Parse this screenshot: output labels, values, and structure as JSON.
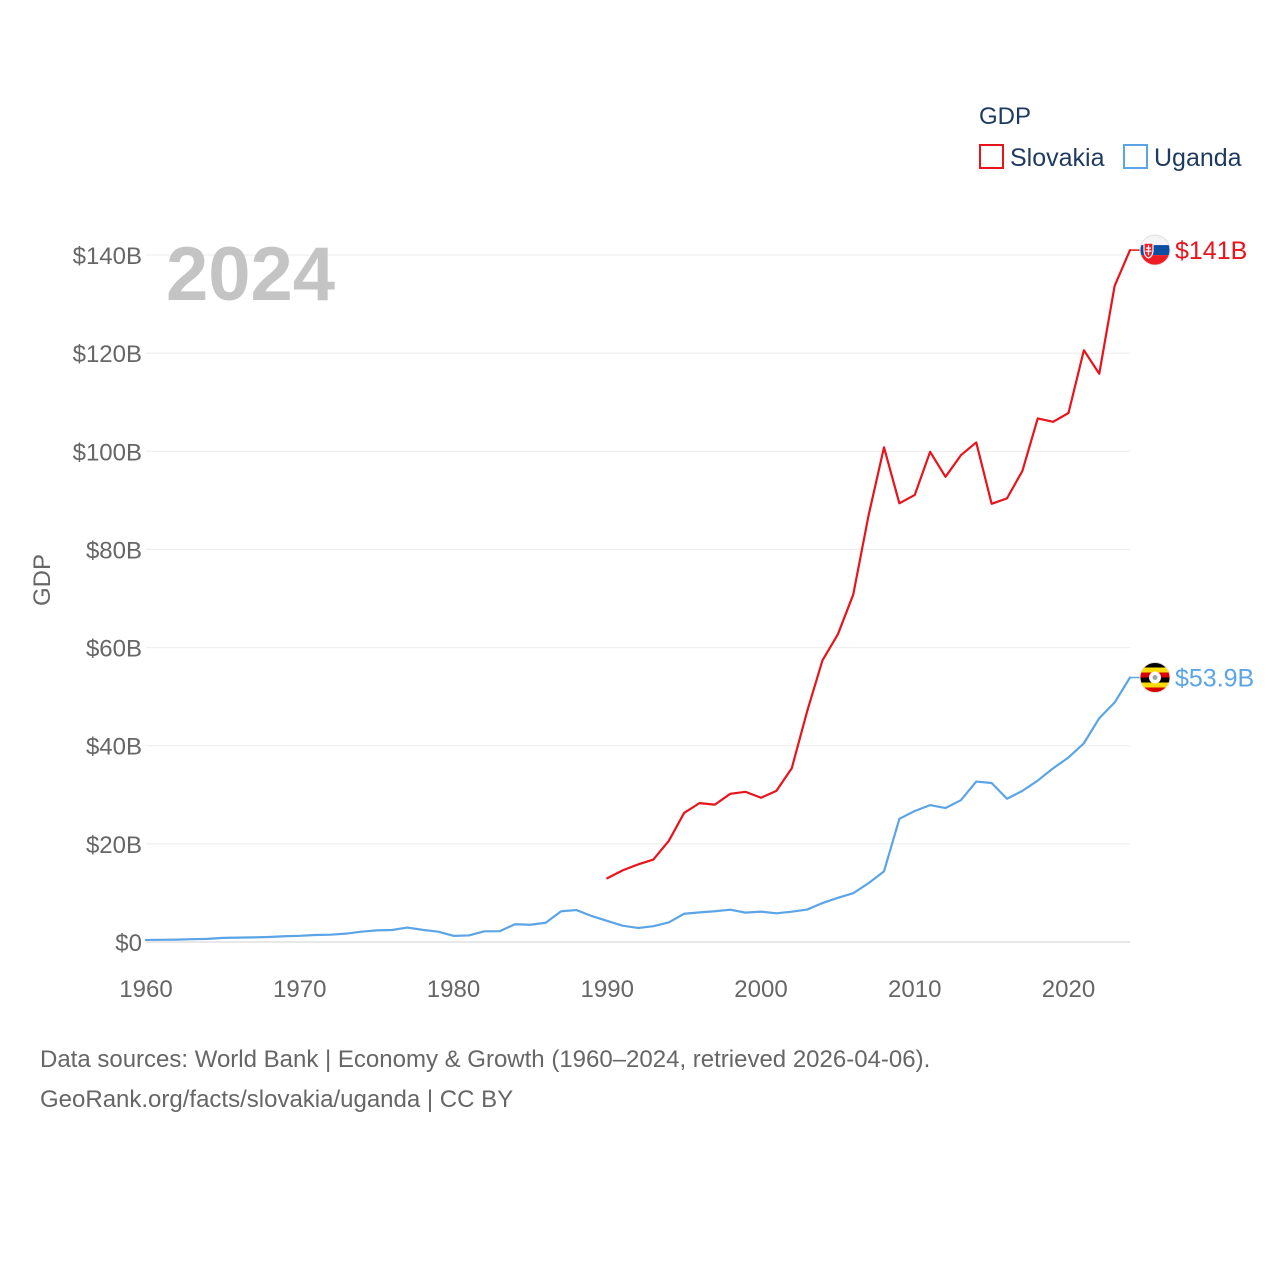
{
  "chart_data": {
    "type": "line",
    "title": "GDP",
    "ylabel": "GDP",
    "xlabel": "",
    "xlim": [
      1960,
      2024
    ],
    "ylim": [
      0,
      140
    ],
    "x_ticks": [
      1960,
      1970,
      1980,
      1990,
      2000,
      2010,
      2020
    ],
    "x_tick_labels": [
      "1960",
      "1970",
      "1980",
      "1990",
      "2000",
      "2010",
      "2020"
    ],
    "y_ticks": [
      0,
      20,
      40,
      60,
      80,
      100,
      120,
      140
    ],
    "y_tick_labels": [
      "$0",
      "$20B",
      "$40B",
      "$60B",
      "$80B",
      "$100B",
      "$120B",
      "$140B"
    ],
    "current_year": "2024",
    "unit": "billion USD",
    "legend": {
      "title": "GDP",
      "position": "top-right"
    },
    "series": [
      {
        "name": "Slovakia",
        "color": "#e8141c",
        "end_label": "$141B",
        "flag": "slovakia-flag",
        "points": [
          [
            1990,
            13.0
          ],
          [
            1991,
            14.6
          ],
          [
            1992,
            15.8
          ],
          [
            1993,
            16.8
          ],
          [
            1994,
            20.6
          ],
          [
            1995,
            26.3
          ],
          [
            1996,
            28.3
          ],
          [
            1997,
            28.0
          ],
          [
            1998,
            30.2
          ],
          [
            1999,
            30.6
          ],
          [
            2000,
            29.4
          ],
          [
            2001,
            30.8
          ],
          [
            2002,
            35.4
          ],
          [
            2003,
            47.0
          ],
          [
            2004,
            57.4
          ],
          [
            2005,
            62.7
          ],
          [
            2006,
            70.8
          ],
          [
            2007,
            87.0
          ],
          [
            2008,
            100.8
          ],
          [
            2009,
            89.4
          ],
          [
            2010,
            91.1
          ],
          [
            2011,
            99.9
          ],
          [
            2012,
            94.8
          ],
          [
            2013,
            99.2
          ],
          [
            2014,
            101.8
          ],
          [
            2015,
            89.3
          ],
          [
            2016,
            90.4
          ],
          [
            2017,
            96.0
          ],
          [
            2018,
            106.7
          ],
          [
            2019,
            106.0
          ],
          [
            2020,
            107.8
          ],
          [
            2021,
            120.6
          ],
          [
            2022,
            115.8
          ],
          [
            2023,
            133.7
          ],
          [
            2024,
            141.0
          ]
        ]
      },
      {
        "name": "Uganda",
        "color": "#5ba4e6",
        "end_label": "$53.9B",
        "flag": "uganda-flag",
        "points": [
          [
            1960,
            0.42
          ],
          [
            1961,
            0.45
          ],
          [
            1962,
            0.48
          ],
          [
            1963,
            0.57
          ],
          [
            1964,
            0.63
          ],
          [
            1965,
            0.84
          ],
          [
            1966,
            0.89
          ],
          [
            1967,
            0.94
          ],
          [
            1968,
            1.02
          ],
          [
            1969,
            1.17
          ],
          [
            1970,
            1.26
          ],
          [
            1971,
            1.42
          ],
          [
            1972,
            1.49
          ],
          [
            1973,
            1.7
          ],
          [
            1974,
            2.1
          ],
          [
            1975,
            2.37
          ],
          [
            1976,
            2.45
          ],
          [
            1977,
            2.94
          ],
          [
            1978,
            2.47
          ],
          [
            1979,
            2.1
          ],
          [
            1980,
            1.25
          ],
          [
            1981,
            1.34
          ],
          [
            1982,
            2.18
          ],
          [
            1983,
            2.2
          ],
          [
            1984,
            3.62
          ],
          [
            1985,
            3.52
          ],
          [
            1986,
            3.92
          ],
          [
            1987,
            6.27
          ],
          [
            1988,
            6.51
          ],
          [
            1989,
            5.28
          ],
          [
            1990,
            4.3
          ],
          [
            1991,
            3.32
          ],
          [
            1992,
            2.86
          ],
          [
            1993,
            3.22
          ],
          [
            1994,
            3.99
          ],
          [
            1995,
            5.76
          ],
          [
            1996,
            6.04
          ],
          [
            1997,
            6.27
          ],
          [
            1998,
            6.58
          ],
          [
            1999,
            5.99
          ],
          [
            2000,
            6.19
          ],
          [
            2001,
            5.84
          ],
          [
            2002,
            6.18
          ],
          [
            2003,
            6.61
          ],
          [
            2004,
            7.94
          ],
          [
            2005,
            9.01
          ],
          [
            2006,
            9.94
          ],
          [
            2007,
            12.0
          ],
          [
            2008,
            14.4
          ],
          [
            2009,
            25.1
          ],
          [
            2010,
            26.7
          ],
          [
            2011,
            27.9
          ],
          [
            2012,
            27.3
          ],
          [
            2013,
            28.9
          ],
          [
            2014,
            32.7
          ],
          [
            2015,
            32.4
          ],
          [
            2016,
            29.2
          ],
          [
            2017,
            30.8
          ],
          [
            2018,
            32.9
          ],
          [
            2019,
            35.4
          ],
          [
            2020,
            37.6
          ],
          [
            2021,
            40.5
          ],
          [
            2022,
            45.6
          ],
          [
            2023,
            48.8
          ],
          [
            2024,
            53.9
          ]
        ]
      }
    ]
  },
  "footer": {
    "line1": "Data sources: World Bank | Economy & Growth (1960–2024, retrieved 2026-04-06).",
    "line2": "GeoRank.org/facts/slovakia/uganda | CC BY"
  }
}
